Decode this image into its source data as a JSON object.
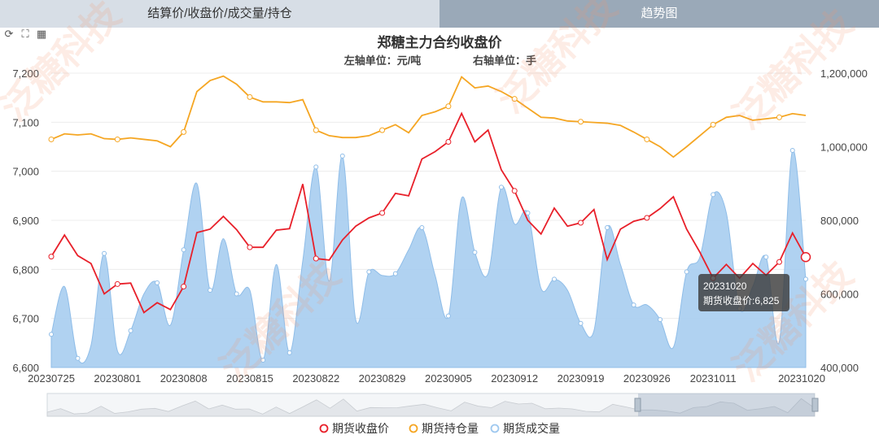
{
  "tabs": {
    "left": "结算价/收盘价/成交量/持仓",
    "right": "趋势图"
  },
  "toolbox": {
    "icons": [
      "refresh-icon",
      "fullscreen-icon",
      "table-icon"
    ]
  },
  "watermark": "泛糖科技",
  "tooltip": {
    "date": "20231020",
    "label": "期货收盘价",
    "value": "6,825"
  },
  "chart_data": {
    "type": "line",
    "title": "郑糖主力合约收盘价",
    "subtitle_left": "左轴单位：元/吨",
    "subtitle_right": "右轴单位：手",
    "grid": true,
    "legend_position": "bottom-center",
    "x_tick_labels": [
      "20230725",
      "20230801",
      "20230808",
      "20230815",
      "20230822",
      "20230829",
      "20230905",
      "20230912",
      "20230919",
      "20230926",
      "20231011",
      "20231020"
    ],
    "y_left": {
      "range": [
        6600,
        7200
      ],
      "ticks": [
        "6,600",
        "6,700",
        "6,800",
        "6,900",
        "7,000",
        "7,100",
        "7,200"
      ]
    },
    "y_right": {
      "range": [
        400000,
        1200000
      ],
      "ticks": [
        "400,000",
        "600,000",
        "800,000",
        "1,000,000",
        "1,200,000"
      ]
    },
    "dates": [
      "20230725",
      "20230726",
      "20230727",
      "20230728",
      "20230731",
      "20230801",
      "20230802",
      "20230803",
      "20230804",
      "20230807",
      "20230808",
      "20230809",
      "20230810",
      "20230811",
      "20230814",
      "20230815",
      "20230816",
      "20230817",
      "20230818",
      "20230821",
      "20230822",
      "20230823",
      "20230824",
      "20230825",
      "20230828",
      "20230829",
      "20230830",
      "20230831",
      "20230901",
      "20230904",
      "20230905",
      "20230906",
      "20230907",
      "20230908",
      "20230911",
      "20230912",
      "20230913",
      "20230914",
      "20230915",
      "20230918",
      "20230919",
      "20230920",
      "20230921",
      "20230922",
      "20230925",
      "20230926",
      "20230927",
      "20230928",
      "20231009",
      "20231010",
      "20231011",
      "20231012",
      "20231013",
      "20231016",
      "20231017",
      "20231018",
      "20231019",
      "20231020"
    ],
    "series": [
      {
        "name": "期货收盘价",
        "axis": "left",
        "color": "#e8202a",
        "values": [
          6826,
          6870,
          6828,
          6812,
          6750,
          6770,
          6772,
          6712,
          6732,
          6718,
          6765,
          6875,
          6882,
          6908,
          6881,
          6845,
          6845,
          6880,
          6883,
          6974,
          6822,
          6819,
          6860,
          6888,
          6905,
          6915,
          6955,
          6950,
          7025,
          7040,
          7060,
          7118,
          7060,
          7084,
          7003,
          6960,
          6900,
          6872,
          6925,
          6888,
          6895,
          6922,
          6820,
          6882,
          6898,
          6905,
          6924,
          6948,
          6882,
          6835,
          6782,
          6810,
          6782,
          6812,
          6788,
          6815,
          6874,
          6825
        ]
      },
      {
        "name": "期货持仓量",
        "axis": "right",
        "color": "#f5a623",
        "values": [
          1020000,
          1035000,
          1032000,
          1035000,
          1022000,
          1020000,
          1024000,
          1020000,
          1016000,
          1000000,
          1040000,
          1150000,
          1180000,
          1192000,
          1170000,
          1135000,
          1122000,
          1122000,
          1120000,
          1128000,
          1045000,
          1030000,
          1025000,
          1025000,
          1030000,
          1045000,
          1060000,
          1038000,
          1085000,
          1095000,
          1110000,
          1190000,
          1160000,
          1165000,
          1150000,
          1130000,
          1105000,
          1080000,
          1078000,
          1070000,
          1068000,
          1066000,
          1064000,
          1058000,
          1040000,
          1020000,
          1000000,
          972000,
          1000000,
          1030000,
          1060000,
          1080000,
          1085000,
          1072000,
          1076000,
          1080000,
          1090000,
          1085000
        ]
      },
      {
        "name": "期货成交量",
        "axis": "right",
        "color": "#9ec8ef",
        "values": [
          490000,
          620000,
          425000,
          460000,
          710000,
          445000,
          500000,
          600000,
          630000,
          515000,
          720000,
          900000,
          610000,
          750000,
          600000,
          610000,
          420000,
          680000,
          440000,
          690000,
          945000,
          635000,
          975000,
          530000,
          660000,
          650000,
          655000,
          720000,
          780000,
          650000,
          540000,
          860000,
          713000,
          655000,
          890000,
          790000,
          820000,
          615000,
          640000,
          610000,
          520000,
          500000,
          780000,
          680000,
          570000,
          570000,
          530000,
          455000,
          660000,
          700000,
          870000,
          820000,
          560000,
          620000,
          700000,
          470000,
          990000,
          640000
        ]
      }
    ]
  }
}
